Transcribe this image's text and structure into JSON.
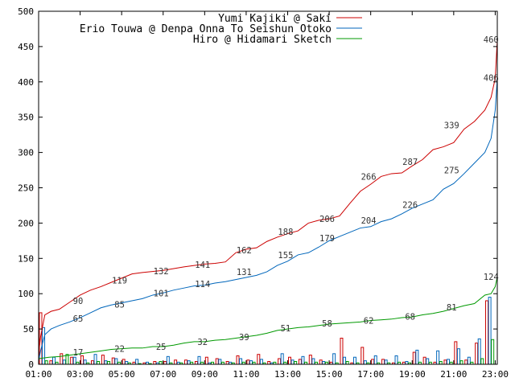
{
  "chart_data": {
    "type": "line",
    "title": "",
    "xlabel": "",
    "ylabel": "",
    "xlim": [
      1,
      23.1
    ],
    "ylim": [
      0,
      500
    ],
    "x_ticks": [
      {
        "x": 1,
        "label": "01:00"
      },
      {
        "x": 3,
        "label": "03:00"
      },
      {
        "x": 5,
        "label": "05:00"
      },
      {
        "x": 7,
        "label": "07:00"
      },
      {
        "x": 9,
        "label": "09:00"
      },
      {
        "x": 11,
        "label": "11:00"
      },
      {
        "x": 13,
        "label": "13:00"
      },
      {
        "x": 15,
        "label": "15:00"
      },
      {
        "x": 17,
        "label": "17:00"
      },
      {
        "x": 19,
        "label": "19:00"
      },
      {
        "x": 21,
        "label": "21:00"
      },
      {
        "x": 23,
        "label": "23:00"
      }
    ],
    "y_ticks": [
      0,
      50,
      100,
      150,
      200,
      250,
      300,
      350,
      400,
      450,
      500
    ],
    "grid": false,
    "legend_position": "top-right",
    "series": [
      {
        "name": "Yumi Kajiki @ Saki",
        "color": "#cc0000",
        "x": [
          1.0,
          1.1,
          1.3,
          1.6,
          2.0,
          2.5,
          3.0,
          3.5,
          4.0,
          4.5,
          5.0,
          5.5,
          6.0,
          7.0,
          8.0,
          9.0,
          9.5,
          10.0,
          10.5,
          11.0,
          11.5,
          12.0,
          12.5,
          13.0,
          13.5,
          14.0,
          14.5,
          15.0,
          15.5,
          16.0,
          16.5,
          17.0,
          17.5,
          18.0,
          18.5,
          19.0,
          19.5,
          20.0,
          20.5,
          21.0,
          21.5,
          22.0,
          22.5,
          22.8,
          23.0,
          23.1
        ],
        "y": [
          15,
          40,
          70,
          75,
          78,
          88,
          98,
          105,
          110,
          116,
          122,
          128,
          130,
          133,
          138,
          142,
          143,
          145,
          158,
          163,
          165,
          174,
          180,
          185,
          189,
          200,
          204,
          206,
          210,
          228,
          245,
          255,
          266,
          270,
          271,
          281,
          290,
          304,
          308,
          314,
          333,
          344,
          360,
          378,
          405,
          460
        ]
      },
      {
        "name": "Erio Touwa @ Denpa Onna To Seishun Otoko",
        "color": "#0066bb",
        "x": [
          1.0,
          1.1,
          1.3,
          1.6,
          2.0,
          2.5,
          3.0,
          3.5,
          4.0,
          4.5,
          5.0,
          5.5,
          6.0,
          6.5,
          7.0,
          7.5,
          8.0,
          8.5,
          9.0,
          9.5,
          10.0,
          10.5,
          11.0,
          11.5,
          12.0,
          12.5,
          13.0,
          13.5,
          14.0,
          14.5,
          15.0,
          15.5,
          16.0,
          16.5,
          17.0,
          17.5,
          18.0,
          18.5,
          19.0,
          19.5,
          20.0,
          20.5,
          21.0,
          21.5,
          22.0,
          22.5,
          22.8,
          23.0,
          23.1
        ],
        "y": [
          5,
          20,
          42,
          50,
          55,
          60,
          66,
          73,
          80,
          84,
          87,
          90,
          93,
          98,
          101,
          105,
          108,
          111,
          112,
          115,
          117,
          120,
          123,
          126,
          131,
          140,
          146,
          155,
          158,
          166,
          175,
          181,
          187,
          193,
          195,
          202,
          206,
          213,
          221,
          227,
          233,
          248,
          256,
          270,
          285,
          300,
          320,
          360,
          405
        ]
      },
      {
        "name": "Hiro @ Hidamari Sketch",
        "color": "#009900",
        "x": [
          1.0,
          1.5,
          2.0,
          2.5,
          3.0,
          3.5,
          4.0,
          4.5,
          5.0,
          5.5,
          6.0,
          6.5,
          7.0,
          7.5,
          8.0,
          8.5,
          9.0,
          9.5,
          10.0,
          10.5,
          11.0,
          11.5,
          12.0,
          12.5,
          13.0,
          13.5,
          14.0,
          14.5,
          15.0,
          15.5,
          16.0,
          16.5,
          17.0,
          17.5,
          18.0,
          18.5,
          19.0,
          19.5,
          20.0,
          20.5,
          21.0,
          21.5,
          22.0,
          22.5,
          22.8,
          23.0,
          23.1
        ],
        "y": [
          8,
          10,
          11,
          13,
          15,
          17,
          19,
          21,
          22,
          23,
          23,
          25,
          25,
          27,
          30,
          32,
          32,
          34,
          35,
          37,
          39,
          41,
          44,
          48,
          50,
          52,
          53,
          55,
          57,
          58,
          59,
          60,
          62,
          63,
          64,
          66,
          67,
          70,
          72,
          75,
          79,
          83,
          86,
          98,
          100,
          110,
          124
        ]
      }
    ],
    "bars": {
      "bin_width_hours": 0.5,
      "x_start": [
        1.0,
        1.5,
        2.0,
        2.5,
        3.0,
        3.5,
        4.0,
        4.5,
        5.0,
        5.5,
        6.0,
        6.5,
        7.0,
        7.5,
        8.0,
        8.5,
        9.0,
        9.5,
        10.0,
        10.5,
        11.0,
        11.5,
        12.0,
        12.5,
        13.0,
        13.5,
        14.0,
        14.5,
        15.0,
        15.5,
        16.0,
        16.5,
        17.0,
        17.5,
        18.0,
        18.5,
        19.0,
        19.5,
        20.0,
        20.5,
        21.0,
        21.5,
        22.0,
        22.5
      ],
      "series_values": [
        [
          73,
          5,
          15,
          10,
          12,
          5,
          13,
          9,
          7,
          3,
          2,
          4,
          4,
          6,
          6,
          4,
          10,
          8,
          4,
          12,
          6,
          14,
          4,
          8,
          10,
          7,
          13,
          6,
          3,
          37,
          2,
          24,
          7,
          7,
          2,
          3,
          17,
          10,
          3,
          6,
          32,
          6,
          30,
          90
        ],
        [
          52,
          10,
          6,
          10,
          6,
          14,
          5,
          8,
          4,
          7,
          3,
          2,
          11,
          3,
          5,
          11,
          2,
          7,
          3,
          8,
          5,
          7,
          2,
          15,
          6,
          11,
          8,
          4,
          15,
          10,
          10,
          5,
          12,
          6,
          12,
          4,
          20,
          8,
          19,
          7,
          22,
          10,
          36,
          95
        ],
        [
          5,
          3,
          14,
          3,
          2,
          4,
          4,
          3,
          2,
          1,
          1,
          4,
          2,
          2,
          3,
          3,
          3,
          3,
          2,
          3,
          3,
          2,
          3,
          3,
          4,
          3,
          3,
          3,
          2,
          4,
          2,
          2,
          2,
          2,
          3,
          2,
          3,
          3,
          4,
          3,
          5,
          3,
          8,
          35
        ]
      ]
    },
    "data_labels": [
      {
        "series": 0,
        "x": 2.9,
        "y": 90,
        "text": "90"
      },
      {
        "series": 0,
        "x": 4.9,
        "y": 119,
        "text": "119"
      },
      {
        "series": 0,
        "x": 6.9,
        "y": 132,
        "text": "132"
      },
      {
        "series": 0,
        "x": 8.9,
        "y": 141,
        "text": "141"
      },
      {
        "series": 0,
        "x": 10.9,
        "y": 162,
        "text": "162"
      },
      {
        "series": 0,
        "x": 12.9,
        "y": 188,
        "text": "188"
      },
      {
        "series": 0,
        "x": 14.9,
        "y": 206,
        "text": "206"
      },
      {
        "series": 0,
        "x": 16.9,
        "y": 266,
        "text": "266"
      },
      {
        "series": 0,
        "x": 18.9,
        "y": 287,
        "text": "287"
      },
      {
        "series": 0,
        "x": 20.9,
        "y": 339,
        "text": "339"
      },
      {
        "series": 0,
        "x": 22.8,
        "y": 460,
        "text": "460"
      },
      {
        "series": 1,
        "x": 2.9,
        "y": 65,
        "text": "65"
      },
      {
        "series": 1,
        "x": 4.9,
        "y": 85,
        "text": "85"
      },
      {
        "series": 1,
        "x": 6.9,
        "y": 101,
        "text": "101"
      },
      {
        "series": 1,
        "x": 8.9,
        "y": 114,
        "text": "114"
      },
      {
        "series": 1,
        "x": 10.9,
        "y": 131,
        "text": "131"
      },
      {
        "series": 1,
        "x": 12.9,
        "y": 155,
        "text": "155"
      },
      {
        "series": 1,
        "x": 14.9,
        "y": 179,
        "text": "179"
      },
      {
        "series": 1,
        "x": 16.9,
        "y": 204,
        "text": "204"
      },
      {
        "series": 1,
        "x": 18.9,
        "y": 226,
        "text": "226"
      },
      {
        "series": 1,
        "x": 20.9,
        "y": 275,
        "text": "275"
      },
      {
        "series": 1,
        "x": 22.8,
        "y": 406,
        "text": "406"
      },
      {
        "series": 2,
        "x": 2.9,
        "y": 17,
        "text": "17"
      },
      {
        "series": 2,
        "x": 4.9,
        "y": 22,
        "text": "22"
      },
      {
        "series": 2,
        "x": 6.9,
        "y": 25,
        "text": "25"
      },
      {
        "series": 2,
        "x": 8.9,
        "y": 32,
        "text": "32"
      },
      {
        "series": 2,
        "x": 10.9,
        "y": 39,
        "text": "39"
      },
      {
        "series": 2,
        "x": 12.9,
        "y": 51,
        "text": "51"
      },
      {
        "series": 2,
        "x": 14.9,
        "y": 58,
        "text": "58"
      },
      {
        "series": 2,
        "x": 16.9,
        "y": 62,
        "text": "62"
      },
      {
        "series": 2,
        "x": 18.9,
        "y": 68,
        "text": "68"
      },
      {
        "series": 2,
        "x": 20.9,
        "y": 81,
        "text": "81"
      },
      {
        "series": 2,
        "x": 22.8,
        "y": 124,
        "text": "124"
      }
    ]
  }
}
